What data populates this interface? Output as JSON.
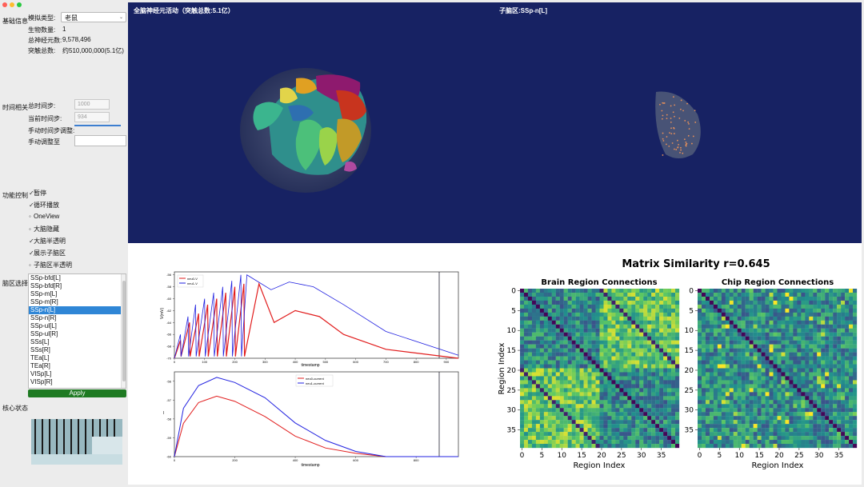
{
  "window": {
    "traffic_lights": [
      "#ff5f57",
      "#febc2e",
      "#28c840"
    ]
  },
  "basic_info": {
    "section_label": "基础信息",
    "sim_type_label": "模拟类型:",
    "sim_type_value": "老鼠",
    "organism_count_label": "生物数量:",
    "organism_count_value": "1",
    "neuron_total_label": "总神经元数:",
    "neuron_total_value": "9,578,496",
    "synapse_total_label": "突触总数:",
    "synapse_total_value": "约510,000,000(5.1亿)"
  },
  "time": {
    "section_label": "时间相关",
    "total_steps_label": "总时间步:",
    "total_steps_value": "1000",
    "current_step_label": "当前时间步:",
    "current_step_value": "934",
    "manual_adjust_label": "手动时间步调整:",
    "manual_adjust_to_label": "手动调整至",
    "manual_adjust_to_value": ""
  },
  "controls": {
    "section_label": "功能控制",
    "items": [
      {
        "label": "暂停",
        "checked": true
      },
      {
        "label": "循环播放",
        "checked": true
      },
      {
        "label": "OneView",
        "checked": false
      },
      {
        "label": "大脑隐藏",
        "checked": false
      },
      {
        "label": "大脑半透明",
        "checked": true
      },
      {
        "label": "展示子脑区",
        "checked": true
      },
      {
        "label": "子脑区半透明",
        "checked": false
      }
    ]
  },
  "region_select": {
    "section_label": "脑区选择",
    "items": [
      "SSp-bfd[L]",
      "SSp-bfd[R]",
      "SSp-m[L]",
      "SSp-m[R]",
      "SSp-n[L]",
      "SSp-n[R]",
      "SSp-ul[L]",
      "SSp-ul[R]",
      "SSs[L]",
      "SSs[R]",
      "TEa[L]",
      "TEa[R]",
      "VISp[L]",
      "VISp[R]"
    ],
    "selected": "SSp-n[L]",
    "apply_label": "Apply"
  },
  "core_status": {
    "section_label": "核心状态"
  },
  "viz": {
    "whole_brain_title": "全脑神经元活动（突触总数:5.1亿）",
    "subregion_title": "子脑区:SSp-n[L]"
  },
  "voltage_plot": {
    "legend": [
      "neu0-V",
      "neu1-V"
    ],
    "ylabel": "V(mV)",
    "xlabel": "timestamp",
    "yticks": [
      "-56",
      "-58",
      "-60",
      "-62",
      "-64",
      "-66",
      "-68",
      "-70"
    ],
    "xticks": [
      "0",
      "100",
      "200",
      "300",
      "400",
      "500",
      "600",
      "700",
      "800",
      "900"
    ]
  },
  "current_plot": {
    "legend": [
      "neu0-current",
      "neu1-current"
    ],
    "ylabel": "I",
    "xlabel": "timestamp",
    "yticks": [
      "-56",
      "-57",
      "-58",
      "-59",
      "-60"
    ],
    "xticks": [
      "0",
      "200",
      "400",
      "600",
      "800"
    ]
  },
  "matrix": {
    "suptitle": "Matrix Similarity r=0.645",
    "brain_title": "Brain Region Connections",
    "chip_title": "Chip Region Connections",
    "xlabel": "Region Index",
    "ylabel": "Region Index",
    "yticks": [
      "0",
      "5",
      "10",
      "15",
      "20",
      "25",
      "30",
      "35"
    ],
    "xticks": [
      "0",
      "5",
      "10",
      "15",
      "20",
      "25",
      "30",
      "35"
    ]
  },
  "colors": {
    "accent": "#2f86d6",
    "apply": "#1e7a22",
    "viz_bg": "#172263",
    "neu0": "#e11c1c",
    "neu1": "#2020e0"
  },
  "chart_data": [
    {
      "type": "line",
      "title": "",
      "xlabel": "timestamp",
      "ylabel": "V(mV)",
      "xlim": [
        0,
        940
      ],
      "ylim": [
        -70,
        -55.5
      ],
      "series": [
        {
          "name": "neu0-V",
          "x": [
            0,
            60,
            120,
            200,
            280,
            330,
            400,
            480,
            560,
            700,
            940
          ],
          "y": [
            -70,
            -66,
            -63,
            -61,
            -57.5,
            -64,
            -62,
            -63,
            -66,
            -68.5,
            -70
          ]
        },
        {
          "name": "neu1-V",
          "x": [
            0,
            60,
            120,
            200,
            240,
            320,
            380,
            460,
            560,
            700,
            940
          ],
          "y": [
            -70,
            -65,
            -62,
            -59,
            -56,
            -58.5,
            -57.2,
            -58,
            -61,
            -65.5,
            -69.5
          ]
        }
      ]
    },
    {
      "type": "line",
      "title": "",
      "xlabel": "timestamp",
      "ylabel": "I",
      "xlim": [
        0,
        940
      ],
      "ylim": [
        -60,
        -55.5
      ],
      "series": [
        {
          "name": "neu0-current",
          "x": [
            0,
            30,
            80,
            140,
            200,
            300,
            400,
            500,
            600,
            700,
            940
          ],
          "y": [
            -60,
            -58.3,
            -57.2,
            -56.8,
            -57,
            -57.8,
            -58.9,
            -59.6,
            -59.9,
            -60,
            -60
          ]
        },
        {
          "name": "neu1-current",
          "x": [
            0,
            30,
            80,
            140,
            200,
            300,
            400,
            500,
            600,
            700,
            940
          ],
          "y": [
            -60,
            -57.5,
            -56.3,
            -55.8,
            -56,
            -56.8,
            -58.2,
            -59.2,
            -59.8,
            -60,
            -60
          ]
        }
      ]
    },
    {
      "type": "heatmap",
      "title": "Brain Region Connections",
      "xlabel": "Region Index",
      "ylabel": "Region Index",
      "size": 40,
      "xlim": [
        0,
        39
      ],
      "ylim": [
        0,
        39
      ]
    },
    {
      "type": "heatmap",
      "title": "Chip Region Connections",
      "xlabel": "Region Index",
      "ylabel": "Region Index",
      "size": 40,
      "xlim": [
        0,
        39
      ],
      "ylim": [
        0,
        39
      ]
    }
  ]
}
